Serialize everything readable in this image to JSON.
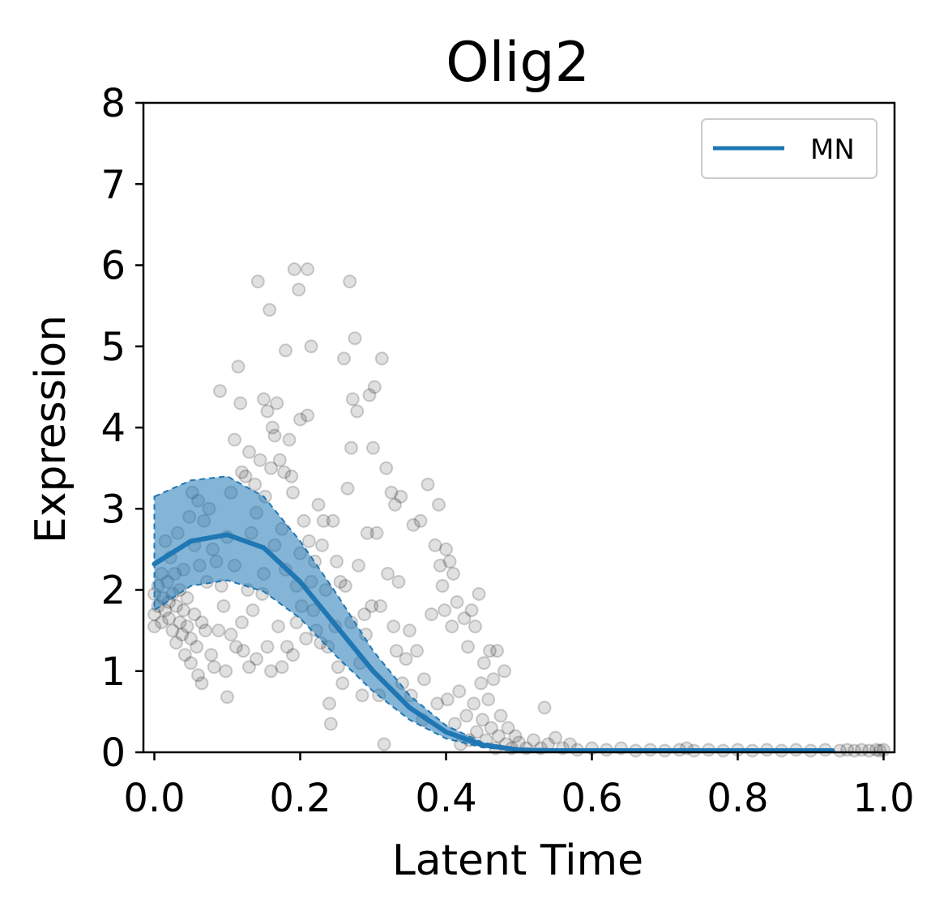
{
  "chart_data": {
    "type": "scatter",
    "title": "Olig2",
    "xlabel": "Latent Time",
    "ylabel": "Expression",
    "xlim": [
      -0.015,
      1.015
    ],
    "ylim": [
      0,
      8
    ],
    "xticks": [
      "0.0",
      "0.2",
      "0.4",
      "0.6",
      "0.8",
      "1.0"
    ],
    "xtick_values": [
      0.0,
      0.2,
      0.4,
      0.6,
      0.8,
      1.0
    ],
    "yticks": [
      "0",
      "1",
      "2",
      "3",
      "4",
      "5",
      "6",
      "7",
      "8"
    ],
    "ytick_values": [
      0,
      1,
      2,
      3,
      4,
      5,
      6,
      7,
      8
    ],
    "grid": false,
    "legend_position": "top-right",
    "colors": {
      "line": "#1f77b4",
      "band": "#1f77b4",
      "points": "#000000"
    },
    "series": [
      {
        "name": "MN",
        "kind": "fit",
        "x": [
          0.0,
          0.05,
          0.1,
          0.15,
          0.2,
          0.25,
          0.3,
          0.35,
          0.4,
          0.45,
          0.5,
          0.55,
          0.6,
          0.65,
          0.7,
          0.75,
          0.8,
          0.85,
          0.93
        ],
        "y": [
          2.32,
          2.6,
          2.68,
          2.52,
          2.1,
          1.55,
          1.0,
          0.55,
          0.25,
          0.09,
          0.03,
          0.02,
          0.02,
          0.02,
          0.02,
          0.02,
          0.02,
          0.02,
          0.02
        ],
        "band_x": [
          0.0,
          0.05,
          0.1,
          0.15,
          0.2,
          0.25,
          0.3,
          0.35,
          0.4,
          0.45,
          0.5
        ],
        "band_upper": [
          3.15,
          3.35,
          3.4,
          3.15,
          2.6,
          1.95,
          1.25,
          0.7,
          0.33,
          0.12,
          0.04
        ],
        "band_lower": [
          1.75,
          2.05,
          2.12,
          1.98,
          1.65,
          1.18,
          0.75,
          0.4,
          0.17,
          0.06,
          0.02
        ]
      },
      {
        "kind": "points",
        "points": [
          [
            0.0,
            1.55
          ],
          [
            0.0,
            1.7
          ],
          [
            0.0,
            1.95
          ],
          [
            0.005,
            2.05
          ],
          [
            0.005,
            1.8
          ],
          [
            0.01,
            1.6
          ],
          [
            0.01,
            2.2
          ],
          [
            0.012,
            1.9
          ],
          [
            0.015,
            2.6
          ],
          [
            0.015,
            1.75
          ],
          [
            0.018,
            2.1
          ],
          [
            0.02,
            1.85
          ],
          [
            0.02,
            1.65
          ],
          [
            0.022,
            2.4
          ],
          [
            0.025,
            1.95
          ],
          [
            0.025,
            1.5
          ],
          [
            0.028,
            2.2
          ],
          [
            0.03,
            1.8
          ],
          [
            0.03,
            1.35
          ],
          [
            0.032,
            2.7
          ],
          [
            0.035,
            1.6
          ],
          [
            0.035,
            2.0
          ],
          [
            0.038,
            1.45
          ],
          [
            0.04,
            1.75
          ],
          [
            0.04,
            2.25
          ],
          [
            0.042,
            1.2
          ],
          [
            0.045,
            1.9
          ],
          [
            0.045,
            1.55
          ],
          [
            0.048,
            2.9
          ],
          [
            0.05,
            1.4
          ],
          [
            0.05,
            1.1
          ],
          [
            0.052,
            3.2
          ],
          [
            0.055,
            1.7
          ],
          [
            0.055,
            2.55
          ],
          [
            0.058,
            1.3
          ],
          [
            0.06,
            0.95
          ],
          [
            0.06,
            3.1
          ],
          [
            0.062,
            2.3
          ],
          [
            0.065,
            1.6
          ],
          [
            0.065,
            0.85
          ],
          [
            0.068,
            2.85
          ],
          [
            0.07,
            1.5
          ],
          [
            0.072,
            2.1
          ],
          [
            0.075,
            3.0
          ],
          [
            0.078,
            1.2
          ],
          [
            0.08,
            2.5
          ],
          [
            0.082,
            1.05
          ],
          [
            0.085,
            2.35
          ],
          [
            0.088,
            1.5
          ],
          [
            0.09,
            4.45
          ],
          [
            0.092,
            2.05
          ],
          [
            0.095,
            1.8
          ],
          [
            0.098,
            1.0
          ],
          [
            0.1,
            2.65
          ],
          [
            0.1,
            0.68
          ],
          [
            0.105,
            3.2
          ],
          [
            0.105,
            1.45
          ],
          [
            0.11,
            2.3
          ],
          [
            0.11,
            3.85
          ],
          [
            0.112,
            1.3
          ],
          [
            0.115,
            4.75
          ],
          [
            0.118,
            4.3
          ],
          [
            0.12,
            3.45
          ],
          [
            0.12,
            1.6
          ],
          [
            0.122,
            1.25
          ],
          [
            0.125,
            3.4
          ],
          [
            0.128,
            2.0
          ],
          [
            0.13,
            1.05
          ],
          [
            0.13,
            3.7
          ],
          [
            0.133,
            2.7
          ],
          [
            0.135,
            1.75
          ],
          [
            0.138,
            3.3
          ],
          [
            0.14,
            2.95
          ],
          [
            0.14,
            1.15
          ],
          [
            0.142,
            5.8
          ],
          [
            0.145,
            3.6
          ],
          [
            0.148,
            1.95
          ],
          [
            0.15,
            4.35
          ],
          [
            0.15,
            2.2
          ],
          [
            0.152,
            3.15
          ],
          [
            0.155,
            4.2
          ],
          [
            0.155,
            1.3
          ],
          [
            0.158,
            5.45
          ],
          [
            0.16,
            3.5
          ],
          [
            0.16,
            1.0
          ],
          [
            0.162,
            4.0
          ],
          [
            0.165,
            2.55
          ],
          [
            0.165,
            3.9
          ],
          [
            0.168,
            4.3
          ],
          [
            0.17,
            1.55
          ],
          [
            0.172,
            3.6
          ],
          [
            0.175,
            2.75
          ],
          [
            0.175,
            1.05
          ],
          [
            0.178,
            3.45
          ],
          [
            0.18,
            4.95
          ],
          [
            0.18,
            2.25
          ],
          [
            0.182,
            1.3
          ],
          [
            0.185,
            3.85
          ],
          [
            0.188,
            3.4
          ],
          [
            0.19,
            1.2
          ],
          [
            0.19,
            3.2
          ],
          [
            0.192,
            5.95
          ],
          [
            0.195,
            2.05
          ],
          [
            0.195,
            1.6
          ],
          [
            0.198,
            5.7
          ],
          [
            0.2,
            4.1
          ],
          [
            0.2,
            2.45
          ],
          [
            0.202,
            1.8
          ],
          [
            0.205,
            2.85
          ],
          [
            0.208,
            1.4
          ],
          [
            0.21,
            5.95
          ],
          [
            0.21,
            4.15
          ],
          [
            0.212,
            2.6
          ],
          [
            0.215,
            5.0
          ],
          [
            0.215,
            2.1
          ],
          [
            0.218,
            1.75
          ],
          [
            0.22,
            2.35
          ],
          [
            0.222,
            1.5
          ],
          [
            0.225,
            3.05
          ],
          [
            0.228,
            1.35
          ],
          [
            0.23,
            2.55
          ],
          [
            0.232,
            2.85
          ],
          [
            0.235,
            2.0
          ],
          [
            0.238,
            1.3
          ],
          [
            0.24,
            0.6
          ],
          [
            0.242,
            0.35
          ],
          [
            0.245,
            2.85
          ],
          [
            0.248,
            1.55
          ],
          [
            0.25,
            2.35
          ],
          [
            0.252,
            1.05
          ],
          [
            0.255,
            2.1
          ],
          [
            0.258,
            0.85
          ],
          [
            0.26,
            4.85
          ],
          [
            0.262,
            2.05
          ],
          [
            0.265,
            3.25
          ],
          [
            0.268,
            5.8
          ],
          [
            0.27,
            3.75
          ],
          [
            0.27,
            1.6
          ],
          [
            0.272,
            4.35
          ],
          [
            0.275,
            5.1
          ],
          [
            0.278,
            4.2
          ],
          [
            0.28,
            2.3
          ],
          [
            0.282,
            1.1
          ],
          [
            0.285,
            0.7
          ],
          [
            0.288,
            1.7
          ],
          [
            0.29,
            1.45
          ],
          [
            0.292,
            2.7
          ],
          [
            0.295,
            4.4
          ],
          [
            0.298,
            1.8
          ],
          [
            0.3,
            3.75
          ],
          [
            0.302,
            4.5
          ],
          [
            0.305,
            2.7
          ],
          [
            0.308,
            0.7
          ],
          [
            0.31,
            1.8
          ],
          [
            0.312,
            4.85
          ],
          [
            0.315,
            0.1
          ],
          [
            0.318,
            3.5
          ],
          [
            0.32,
            2.2
          ],
          [
            0.325,
            3.2
          ],
          [
            0.328,
            1.55
          ],
          [
            0.33,
            3.05
          ],
          [
            0.332,
            1.25
          ],
          [
            0.335,
            2.1
          ],
          [
            0.338,
            3.15
          ],
          [
            0.34,
            0.85
          ],
          [
            0.345,
            1.15
          ],
          [
            0.35,
            1.5
          ],
          [
            0.352,
            0.7
          ],
          [
            0.355,
            2.8
          ],
          [
            0.36,
            1.25
          ],
          [
            0.365,
            2.85
          ],
          [
            0.368,
            0.4
          ],
          [
            0.37,
            0.9
          ],
          [
            0.375,
            3.3
          ],
          [
            0.38,
            1.7
          ],
          [
            0.385,
            2.55
          ],
          [
            0.388,
            0.6
          ],
          [
            0.39,
            3.05
          ],
          [
            0.392,
            2.3
          ],
          [
            0.395,
            2.05
          ],
          [
            0.398,
            1.75
          ],
          [
            0.4,
            2.5
          ],
          [
            0.402,
            0.65
          ],
          [
            0.405,
            2.35
          ],
          [
            0.408,
            1.55
          ],
          [
            0.41,
            2.2
          ],
          [
            0.412,
            0.35
          ],
          [
            0.415,
            1.85
          ],
          [
            0.418,
            0.75
          ],
          [
            0.42,
            0.1
          ],
          [
            0.425,
            1.65
          ],
          [
            0.428,
            0.45
          ],
          [
            0.43,
            1.3
          ],
          [
            0.432,
            0.15
          ],
          [
            0.435,
            1.75
          ],
          [
            0.438,
            0.6
          ],
          [
            0.44,
            1.55
          ],
          [
            0.442,
            0.25
          ],
          [
            0.445,
            1.95
          ],
          [
            0.448,
            0.85
          ],
          [
            0.45,
            0.4
          ],
          [
            0.452,
            1.1
          ],
          [
            0.455,
            0.15
          ],
          [
            0.458,
            0.65
          ],
          [
            0.46,
            1.25
          ],
          [
            0.462,
            0.3
          ],
          [
            0.465,
            0.9
          ],
          [
            0.468,
            0.05
          ],
          [
            0.47,
            1.25
          ],
          [
            0.472,
            0.2
          ],
          [
            0.475,
            0.45
          ],
          [
            0.48,
            1.0
          ],
          [
            0.482,
            0.1
          ],
          [
            0.485,
            0.3
          ],
          [
            0.49,
            0.05
          ],
          [
            0.495,
            0.2
          ],
          [
            0.5,
            0.12
          ],
          [
            0.51,
            0.05
          ],
          [
            0.52,
            0.15
          ],
          [
            0.53,
            0.05
          ],
          [
            0.535,
            0.55
          ],
          [
            0.54,
            0.1
          ],
          [
            0.55,
            0.18
          ],
          [
            0.56,
            0.05
          ],
          [
            0.57,
            0.1
          ],
          [
            0.58,
            0.03
          ],
          [
            0.6,
            0.05
          ],
          [
            0.62,
            0.03
          ],
          [
            0.64,
            0.05
          ],
          [
            0.66,
            0.02
          ],
          [
            0.68,
            0.03
          ],
          [
            0.7,
            0.02
          ],
          [
            0.72,
            0.03
          ],
          [
            0.73,
            0.05
          ],
          [
            0.74,
            0.02
          ],
          [
            0.76,
            0.03
          ],
          [
            0.78,
            0.02
          ],
          [
            0.8,
            0.03
          ],
          [
            0.82,
            0.02
          ],
          [
            0.84,
            0.03
          ],
          [
            0.86,
            0.02
          ],
          [
            0.88,
            0.03
          ],
          [
            0.9,
            0.02
          ],
          [
            0.92,
            0.03
          ],
          [
            0.94,
            0.02
          ],
          [
            0.95,
            0.03
          ],
          [
            0.96,
            0.02
          ],
          [
            0.97,
            0.03
          ],
          [
            0.98,
            0.02
          ],
          [
            0.99,
            0.03
          ],
          [
            0.995,
            0.02
          ],
          [
            1.0,
            0.03
          ]
        ]
      }
    ]
  }
}
